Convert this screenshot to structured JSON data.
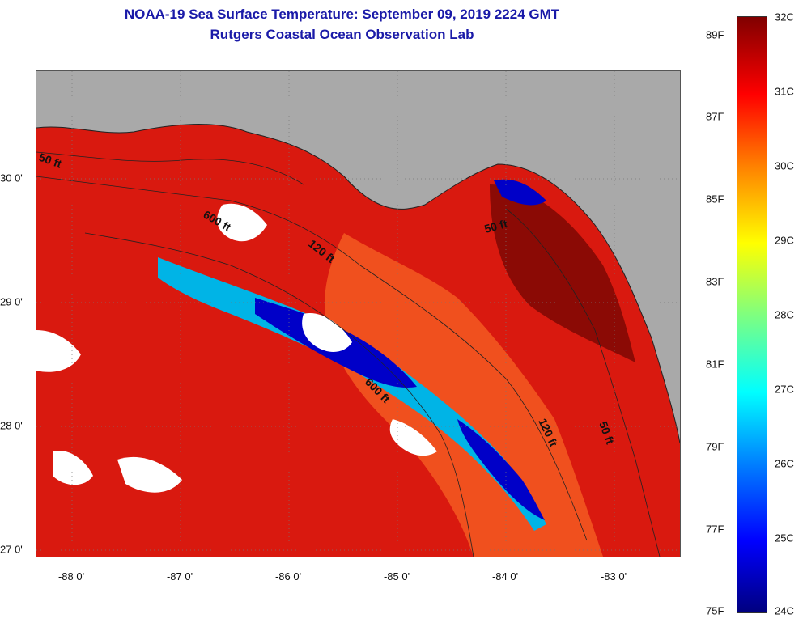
{
  "title": {
    "line1": "NOAA-19 Sea Surface Temperature:  September 09, 2019 2224 GMT",
    "line2": "Rutgers Coastal Ocean Observation Lab"
  },
  "map": {
    "land_color": "#a9a9a9",
    "x_ticks": [
      "-88 0'",
      "-87 0'",
      "-86 0'",
      "-85 0'",
      "-84 0'",
      "-83 0'"
    ],
    "y_ticks": [
      "30 0'",
      "29 0'",
      "28 0'",
      "27 0'"
    ],
    "contour_labels": [
      "50 ft",
      "600 ft",
      "120 ft",
      "600 ft",
      "120 ft",
      "50 ft",
      "50 ft"
    ]
  },
  "colorbar": {
    "fahrenheit": [
      "89F",
      "87F",
      "85F",
      "83F",
      "81F",
      "79F",
      "77F",
      "75F"
    ],
    "celsius": [
      "32C",
      "31C",
      "30C",
      "29C",
      "28C",
      "27C",
      "26C",
      "25C",
      "24C"
    ],
    "colors": [
      "#00007f",
      "#0000ff",
      "#0080ff",
      "#00ffff",
      "#7fff7f",
      "#ffff00",
      "#ff8000",
      "#ff0000",
      "#800000"
    ]
  }
}
